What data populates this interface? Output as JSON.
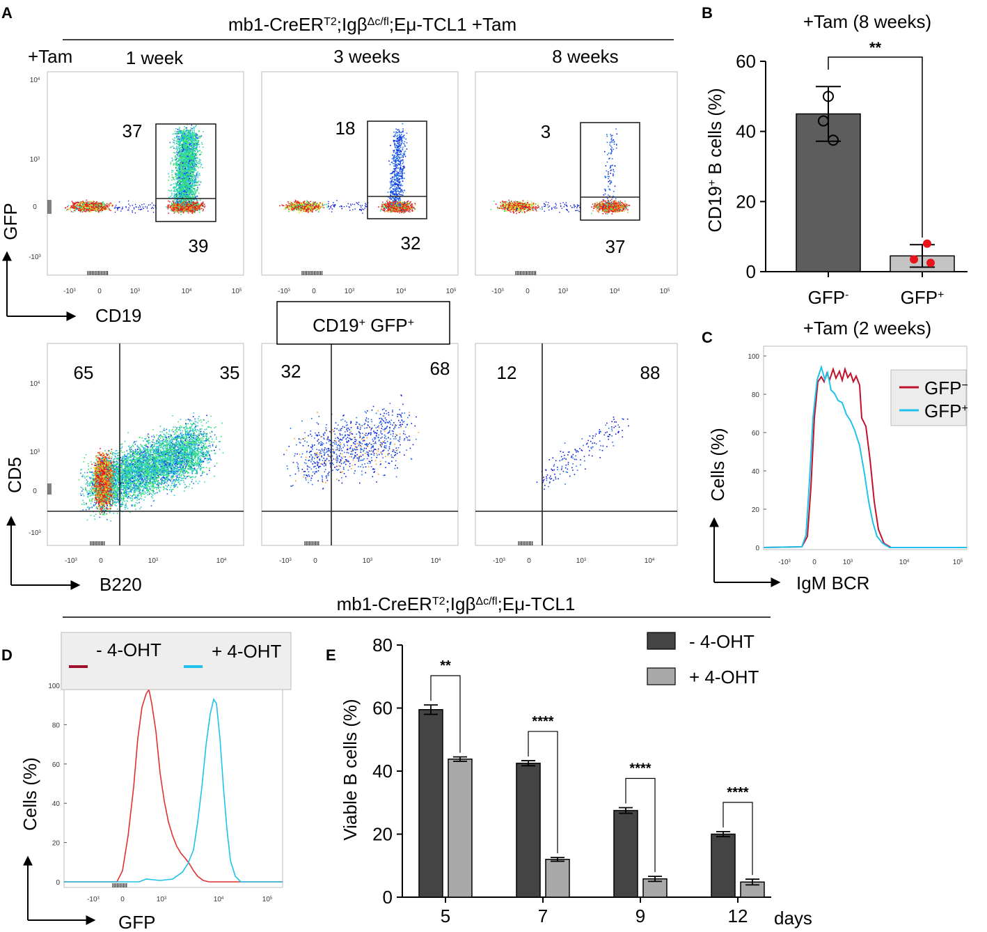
{
  "panel_letters": [
    "A",
    "B",
    "C",
    "D",
    "E"
  ],
  "top_header": {
    "base": "mb1-CreER",
    "sup1": "T2",
    "mid": ";Igβ",
    "sup2": "Δc/fl",
    "tail": ";Eμ-TCL1 +Tam"
  },
  "bottom_header": {
    "base": "mb1-CreER",
    "sup1": "T2",
    "mid": ";Igβ",
    "sup2": "Δc/fl",
    "tail": ";Eμ-TCL1"
  },
  "panel_a": {
    "tam_label": "+Tam",
    "timepoints": [
      "1 week",
      "3 weeks",
      "8 weeks"
    ],
    "top_row": {
      "x_axis_title": "CD19",
      "y_axis_title": "GFP",
      "x_ticks": [
        "-10",
        "0",
        "10",
        "10",
        "10"
      ],
      "x_tick_exps": [
        "3",
        "",
        "3",
        "4",
        "5"
      ],
      "y_ticks": [
        "10",
        "10",
        "0",
        "-10"
      ],
      "y_tick_exps": [
        "4",
        "3",
        "",
        "3"
      ],
      "gfp_plus_pct": [
        "37",
        "18",
        "3"
      ],
      "gfp_minus_pct": [
        "39",
        "32",
        "37"
      ]
    },
    "gate_box": {
      "base": "CD19",
      "sup1": "+",
      "mid": " GFP",
      "sup2": "+"
    },
    "bottom_row": {
      "x_axis_title": "B220",
      "y_axis_title": "CD5",
      "x_ticks": [
        "-10",
        "0",
        "10",
        "10"
      ],
      "x_tick_exps": [
        "3",
        "",
        "3",
        "4"
      ],
      "y_ticks": [
        "10",
        "10",
        "0",
        "-10"
      ],
      "y_tick_exps": [
        "4",
        "3",
        "",
        "3"
      ],
      "left_pct": [
        "65",
        "32",
        "12"
      ],
      "right_pct": [
        "35",
        "68",
        "88"
      ]
    }
  },
  "chart_data": [
    {
      "id": "B",
      "type": "bar",
      "title": "+Tam (8 weeks)",
      "categories": [
        "GFP",
        "GFP"
      ],
      "category_sups": [
        "-",
        "+"
      ],
      "values": [
        45,
        4.5
      ],
      "errors": [
        7.8,
        3.2
      ],
      "points": [
        [
          50,
          43,
          37.5
        ],
        [
          8,
          3.5,
          2.5
        ]
      ],
      "ylabel": {
        "base": "CD19",
        "sup": "+",
        "tail": " B cells (%)"
      },
      "ylim": [
        0,
        60
      ],
      "yticks": [
        0,
        20,
        40,
        60
      ],
      "significance": "**",
      "colors": [
        "#5d5d5d",
        "#c4c4c4"
      ]
    },
    {
      "id": "C",
      "type": "line",
      "title": "+Tam (2 weeks)",
      "xlabel": "IgM BCR",
      "ylabel": "Cells (%)",
      "ylim": [
        0,
        100
      ],
      "yticks": [
        0,
        20,
        40,
        60,
        80,
        100
      ],
      "x_ticks": [
        "-10",
        "0",
        "10",
        "10",
        "10"
      ],
      "x_tick_exps": [
        "3",
        "",
        "3",
        "4",
        "5"
      ],
      "series": [
        {
          "name": "GFP",
          "sup": "−",
          "color": "#c2102a"
        },
        {
          "name": "GFP",
          "sup": "+",
          "color": "#1ec2ec"
        }
      ]
    },
    {
      "id": "D",
      "type": "line",
      "xlabel": "GFP",
      "ylabel": "Cells (%)",
      "ylim": [
        0,
        100
      ],
      "yticks": [
        0,
        20,
        40,
        60,
        80,
        100
      ],
      "x_ticks": [
        "-10",
        "0",
        "10",
        "10",
        "10"
      ],
      "x_tick_exps": [
        "3",
        "",
        "3",
        "4",
        "5"
      ],
      "series": [
        {
          "name": "- 4-OHT",
          "color": "#a0102a"
        },
        {
          "name": "+ 4-OHT",
          "color": "#1ec2ec"
        }
      ]
    },
    {
      "id": "E",
      "type": "bar",
      "categories": [
        "5",
        "7",
        "9",
        "12"
      ],
      "xlabel": "days",
      "ylabel": "Viable B cells (%)",
      "ylim": [
        0,
        80
      ],
      "yticks": [
        0,
        20,
        40,
        60,
        80
      ],
      "series": [
        {
          "name": "- 4-OHT",
          "values": [
            59.5,
            42.5,
            27.5,
            20
          ],
          "errors": [
            1.5,
            0.8,
            0.9,
            0.8
          ],
          "color": "#444444"
        },
        {
          "name": "+ 4-OHT",
          "values": [
            43.8,
            12,
            5.8,
            4.8
          ],
          "errors": [
            0.7,
            0.6,
            0.8,
            0.9
          ],
          "color": "#a9a9a9"
        }
      ],
      "significance": [
        "**",
        "****",
        "****",
        "****"
      ]
    }
  ]
}
